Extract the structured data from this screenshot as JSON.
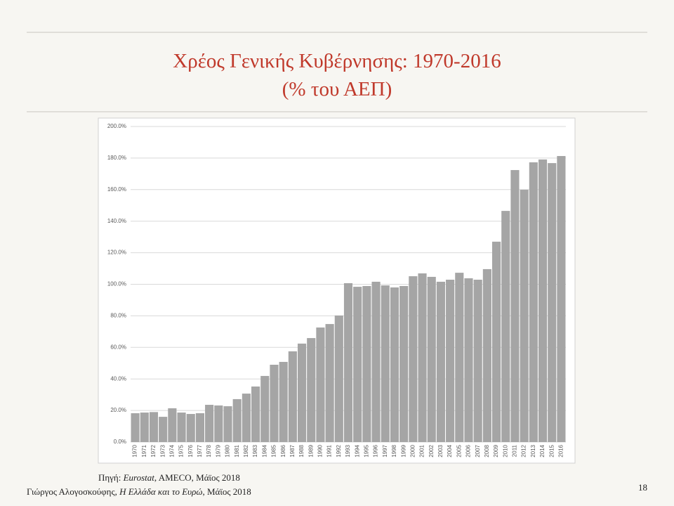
{
  "chart_data": {
    "type": "bar",
    "title": "Χρέος Γενικής Κυβέρνησης: 1970-2016",
    "subtitle": "(% του ΑΕΠ)",
    "categories": [
      "1970",
      "1971",
      "1972",
      "1973",
      "1974",
      "1975",
      "1976",
      "1977",
      "1978",
      "1979",
      "1980",
      "1981",
      "1982",
      "1983",
      "1984",
      "1985",
      "1986",
      "1987",
      "1988",
      "1989",
      "1990",
      "1991",
      "1992",
      "1993",
      "1994",
      "1995",
      "1996",
      "1997",
      "1998",
      "1999",
      "2000",
      "2001",
      "2002",
      "2003",
      "2004",
      "2005",
      "2006",
      "2007",
      "2008",
      "2009",
      "2010",
      "2011",
      "2012",
      "2013",
      "2014",
      "2015",
      "2016"
    ],
    "values": [
      18.3,
      18.7,
      19.0,
      16.0,
      21.4,
      18.7,
      17.8,
      18.3,
      23.6,
      23.2,
      22.7,
      27.2,
      30.7,
      35.2,
      41.9,
      49.0,
      50.8,
      57.5,
      62.4,
      65.9,
      72.6,
      74.8,
      80.2,
      100.7,
      98.4,
      98.9,
      101.6,
      99.3,
      98.0,
      98.9,
      105.1,
      106.9,
      104.7,
      101.6,
      102.9,
      107.3,
      103.8,
      102.9,
      109.6,
      127.0,
      146.5,
      172.4,
      159.9,
      177.3,
      179.1,
      176.8,
      181.3
    ],
    "color": "#a5a5a5",
    "ylim": [
      0,
      200
    ],
    "yticks": [
      {
        "value": 0,
        "label": "0.0%"
      },
      {
        "value": 20,
        "label": "20.0%"
      },
      {
        "value": 40,
        "label": "40.0%"
      },
      {
        "value": 60,
        "label": "60.0%"
      },
      {
        "value": 80,
        "label": "80.0%"
      },
      {
        "value": 100,
        "label": "100.0%"
      },
      {
        "value": 120,
        "label": "120.0%"
      },
      {
        "value": 140,
        "label": "140.0%"
      },
      {
        "value": 160,
        "label": "160.0%"
      },
      {
        "value": 180,
        "label": "180.0%"
      },
      {
        "value": 200,
        "label": "200.0%"
      }
    ],
    "grid": true
  },
  "source": {
    "prefix": "Πηγή: ",
    "italic": "Eurostat",
    "rest": ", AMECO, Μάϊος 2018"
  },
  "footer": {
    "author": "Γιώργος Αλογοσκούφης, ",
    "book": "Η Ελλάδα και το Ευρώ",
    "date": ", Μάϊος 2018"
  },
  "page_number": "18"
}
